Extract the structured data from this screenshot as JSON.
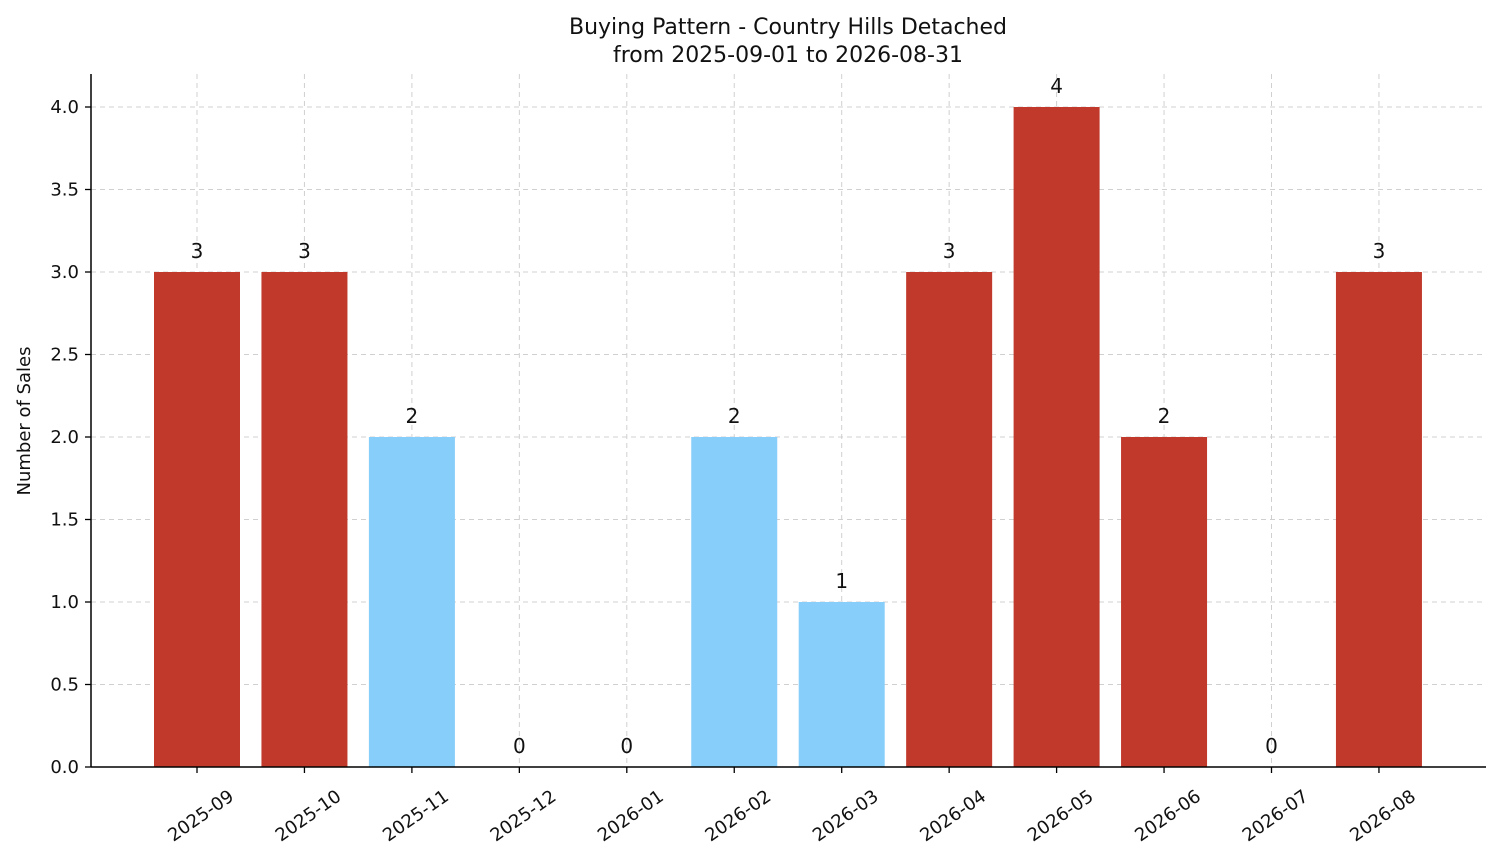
{
  "chart_data": {
    "type": "bar",
    "title": "Buying Pattern - Country Hills Detached",
    "subtitle": "from 2025-09-01 to 2026-08-31",
    "xlabel": "",
    "ylabel": "Number of Sales",
    "categories": [
      "2025-09",
      "2025-10",
      "2025-11",
      "2025-12",
      "2026-01",
      "2026-02",
      "2026-03",
      "2026-04",
      "2026-05",
      "2026-06",
      "2026-07",
      "2026-08"
    ],
    "values": [
      3,
      3,
      2,
      0,
      0,
      2,
      1,
      3,
      4,
      2,
      0,
      3
    ],
    "bar_colors": [
      "#c0392b",
      "#c0392b",
      "#87cefa",
      "#c0392b",
      "#c0392b",
      "#87cefa",
      "#87cefa",
      "#c0392b",
      "#c0392b",
      "#c0392b",
      "#c0392b",
      "#c0392b"
    ],
    "ylim": [
      0,
      4.2
    ],
    "yticks": [
      "0.0",
      "0.5",
      "1.0",
      "1.5",
      "2.0",
      "2.5",
      "3.0",
      "3.5",
      "4.0"
    ],
    "ytick_values": [
      0,
      0.5,
      1,
      1.5,
      2,
      2.5,
      3,
      3.5,
      4
    ],
    "grid": true,
    "legend": "none"
  }
}
